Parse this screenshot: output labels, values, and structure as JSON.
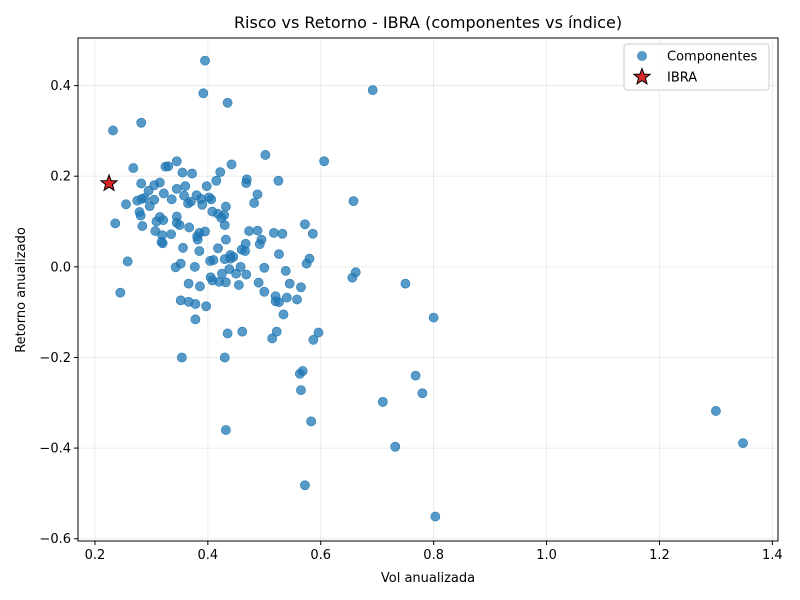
{
  "chart_data": {
    "type": "scatter",
    "title": "Risco vs Retorno - IBRA (componentes vs índice)",
    "xlabel": "Vol anualizada",
    "ylabel": "Retorno anualizado",
    "xlim": [
      0.17,
      1.41
    ],
    "ylim": [
      -0.605,
      0.505
    ],
    "xticks": [
      0.2,
      0.4,
      0.6,
      0.8,
      1.0,
      1.2,
      1.4
    ],
    "xtick_labels": [
      "0.2",
      "0.4",
      "0.6",
      "0.8",
      "1.0",
      "1.2",
      "1.4"
    ],
    "yticks": [
      -0.6,
      -0.4,
      -0.2,
      0.0,
      0.2,
      0.4
    ],
    "ytick_labels": [
      "−0.6",
      "−0.4",
      "−0.2",
      "0.0",
      "0.2",
      "0.4"
    ],
    "grid": true,
    "legend_position": "top-right",
    "series": [
      {
        "name": "Componentes",
        "color": "#1f77b4",
        "marker": "circle",
        "points": [
          [
            0.395,
            0.455
          ],
          [
            0.392,
            0.383
          ],
          [
            0.435,
            0.362
          ],
          [
            0.692,
            0.39
          ],
          [
            0.282,
            0.318
          ],
          [
            0.232,
            0.301
          ],
          [
            0.502,
            0.247
          ],
          [
            0.606,
            0.233
          ],
          [
            0.345,
            0.233
          ],
          [
            0.442,
            0.226
          ],
          [
            0.268,
            0.218
          ],
          [
            0.325,
            0.221
          ],
          [
            0.33,
            0.222
          ],
          [
            0.355,
            0.208
          ],
          [
            0.372,
            0.206
          ],
          [
            0.422,
            0.209
          ],
          [
            0.469,
            0.193
          ],
          [
            0.468,
            0.185
          ],
          [
            0.525,
            0.19
          ],
          [
            0.415,
            0.19
          ],
          [
            0.282,
            0.184
          ],
          [
            0.305,
            0.18
          ],
          [
            0.315,
            0.186
          ],
          [
            0.36,
            0.178
          ],
          [
            0.398,
            0.178
          ],
          [
            0.345,
            0.172
          ],
          [
            0.295,
            0.168
          ],
          [
            0.488,
            0.16
          ],
          [
            0.322,
            0.162
          ],
          [
            0.358,
            0.157
          ],
          [
            0.38,
            0.158
          ],
          [
            0.658,
            0.145
          ],
          [
            0.482,
            0.141
          ],
          [
            0.275,
            0.146
          ],
          [
            0.288,
            0.152
          ],
          [
            0.283,
            0.15
          ],
          [
            0.305,
            0.148
          ],
          [
            0.336,
            0.149
          ],
          [
            0.37,
            0.144
          ],
          [
            0.388,
            0.15
          ],
          [
            0.402,
            0.153
          ],
          [
            0.406,
            0.149
          ],
          [
            0.365,
            0.14
          ],
          [
            0.39,
            0.137
          ],
          [
            0.255,
            0.138
          ],
          [
            0.297,
            0.134
          ],
          [
            0.432,
            0.133
          ],
          [
            0.408,
            0.122
          ],
          [
            0.418,
            0.117
          ],
          [
            0.429,
            0.114
          ],
          [
            0.424,
            0.108
          ],
          [
            0.279,
            0.121
          ],
          [
            0.281,
            0.113
          ],
          [
            0.315,
            0.11
          ],
          [
            0.321,
            0.103
          ],
          [
            0.309,
            0.1
          ],
          [
            0.345,
            0.111
          ],
          [
            0.35,
            0.092
          ],
          [
            0.345,
            0.097
          ],
          [
            0.572,
            0.094
          ],
          [
            0.43,
            0.092
          ],
          [
            0.284,
            0.09
          ],
          [
            0.236,
            0.096
          ],
          [
            0.367,
            0.087
          ],
          [
            0.307,
            0.079
          ],
          [
            0.319,
            0.07
          ],
          [
            0.335,
            0.072
          ],
          [
            0.385,
            0.075
          ],
          [
            0.395,
            0.078
          ],
          [
            0.473,
            0.079
          ],
          [
            0.488,
            0.08
          ],
          [
            0.517,
            0.075
          ],
          [
            0.532,
            0.073
          ],
          [
            0.586,
            0.073
          ],
          [
            0.381,
            0.067
          ],
          [
            0.382,
            0.06
          ],
          [
            0.432,
            0.06
          ],
          [
            0.495,
            0.06
          ],
          [
            0.318,
            0.055
          ],
          [
            0.32,
            0.052
          ],
          [
            0.467,
            0.051
          ],
          [
            0.492,
            0.05
          ],
          [
            0.356,
            0.042
          ],
          [
            0.418,
            0.041
          ],
          [
            0.46,
            0.038
          ],
          [
            0.466,
            0.035
          ],
          [
            0.385,
            0.035
          ],
          [
            0.44,
            0.026
          ],
          [
            0.445,
            0.022
          ],
          [
            0.526,
            0.028
          ],
          [
            0.58,
            0.018
          ],
          [
            0.258,
            0.012
          ],
          [
            0.352,
            0.007
          ],
          [
            0.404,
            0.013
          ],
          [
            0.41,
            0.015
          ],
          [
            0.43,
            0.017
          ],
          [
            0.44,
            0.018
          ],
          [
            0.575,
            0.007
          ],
          [
            0.377,
            0.0
          ],
          [
            0.343,
            -0.001
          ],
          [
            0.438,
            -0.005
          ],
          [
            0.458,
            0.0
          ],
          [
            0.5,
            -0.002
          ],
          [
            0.538,
            -0.009
          ],
          [
            0.662,
            -0.012
          ],
          [
            0.656,
            -0.024
          ],
          [
            0.425,
            -0.015
          ],
          [
            0.45,
            -0.015
          ],
          [
            0.468,
            -0.017
          ],
          [
            0.405,
            -0.023
          ],
          [
            0.408,
            -0.03
          ],
          [
            0.42,
            -0.033
          ],
          [
            0.432,
            -0.034
          ],
          [
            0.455,
            -0.04
          ],
          [
            0.366,
            -0.037
          ],
          [
            0.386,
            -0.043
          ],
          [
            0.49,
            -0.035
          ],
          [
            0.545,
            -0.037
          ],
          [
            0.565,
            -0.045
          ],
          [
            0.75,
            -0.037
          ],
          [
            0.245,
            -0.057
          ],
          [
            0.5,
            -0.055
          ],
          [
            0.52,
            -0.065
          ],
          [
            0.54,
            -0.068
          ],
          [
            0.558,
            -0.072
          ],
          [
            0.352,
            -0.074
          ],
          [
            0.366,
            -0.077
          ],
          [
            0.378,
            -0.082
          ],
          [
            0.397,
            -0.087
          ],
          [
            0.52,
            -0.076
          ],
          [
            0.526,
            -0.078
          ],
          [
            0.534,
            -0.105
          ],
          [
            0.378,
            -0.116
          ],
          [
            0.8,
            -0.112
          ],
          [
            0.435,
            -0.147
          ],
          [
            0.461,
            -0.143
          ],
          [
            0.522,
            -0.143
          ],
          [
            0.596,
            -0.145
          ],
          [
            0.514,
            -0.158
          ],
          [
            0.587,
            -0.161
          ],
          [
            0.354,
            -0.2
          ],
          [
            0.43,
            -0.2
          ],
          [
            0.568,
            -0.23
          ],
          [
            0.563,
            -0.236
          ],
          [
            0.768,
            -0.24
          ],
          [
            0.565,
            -0.272
          ],
          [
            0.78,
            -0.279
          ],
          [
            0.71,
            -0.298
          ],
          [
            0.583,
            -0.341
          ],
          [
            0.432,
            -0.36
          ],
          [
            0.732,
            -0.397
          ],
          [
            0.572,
            -0.482
          ],
          [
            0.803,
            -0.551
          ],
          [
            1.3,
            -0.318
          ],
          [
            1.348,
            -0.389
          ]
        ]
      },
      {
        "name": "IBRA",
        "color": "#d62728",
        "marker": "star",
        "points": [
          [
            0.225,
            0.184
          ]
        ]
      }
    ]
  }
}
